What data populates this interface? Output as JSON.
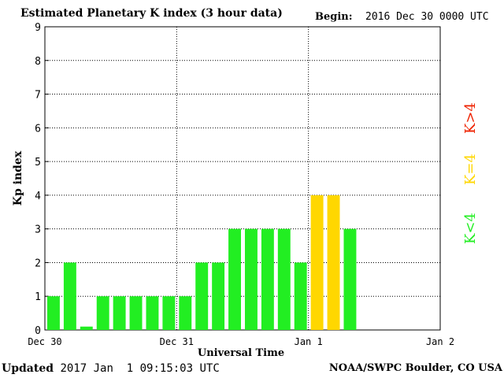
{
  "header": {
    "title": "Estimated Planetary K index (3 hour data)",
    "begin_label": "Begin:",
    "begin_value": "2016 Dec 30 0000 UTC"
  },
  "footer": {
    "updated_label": "Updated",
    "updated_value": "2017 Jan  1 09:15:03 UTC",
    "credit": "NOAA/SWPC Boulder, CO USA"
  },
  "legend": {
    "above": "K>4",
    "equal": "K=4",
    "below": "K<4"
  },
  "colors": {
    "below": "#22ee22",
    "equal": "#ffd700",
    "above": "#ee2200"
  },
  "chart_data": {
    "type": "bar",
    "title": "Estimated Planetary K index (3 hour data)",
    "xlabel": "Universal Time",
    "ylabel": "Kp index",
    "ylim": [
      0,
      9
    ],
    "yticks": [
      "0",
      "1",
      "2",
      "3",
      "4",
      "5",
      "6",
      "7",
      "8",
      "9"
    ],
    "xticks": [
      "Dec 30",
      "Dec 31",
      "Jan 1",
      "Jan 2"
    ],
    "grid": true,
    "interval_hours": 3,
    "values": [
      1,
      2,
      0.1,
      1,
      1,
      1,
      1,
      1,
      1,
      2,
      2,
      3,
      3,
      3,
      3,
      2,
      4,
      4,
      3
    ]
  }
}
